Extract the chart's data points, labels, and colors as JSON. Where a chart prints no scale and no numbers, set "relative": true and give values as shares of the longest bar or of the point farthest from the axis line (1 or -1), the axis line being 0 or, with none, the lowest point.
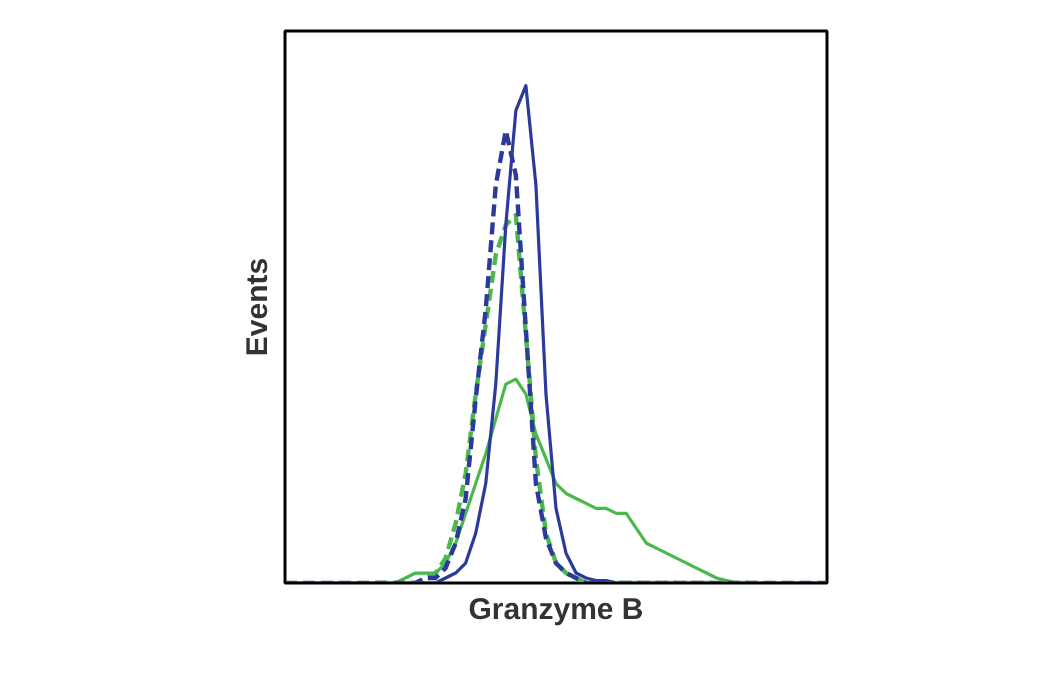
{
  "chart_data": {
    "type": "line",
    "xlabel": "Granzyme B",
    "ylabel": "Events",
    "relative": true,
    "tick_labels": false,
    "categories": [
      null,
      null,
      null,
      null,
      null,
      null,
      null,
      null,
      null,
      null,
      null,
      null,
      null,
      null,
      null,
      null,
      null,
      null,
      null,
      null,
      null,
      null,
      null,
      null,
      null,
      null,
      null,
      null,
      null,
      null,
      null,
      null,
      null,
      null,
      null,
      null,
      null,
      null,
      null,
      null,
      null,
      null,
      null,
      null,
      null,
      null,
      null,
      null,
      null,
      null,
      null,
      null,
      null,
      null,
      null
    ],
    "series": [
      {
        "color": "#4bb84b",
        "line_style": "solid",
        "values": [
          null,
          null,
          null,
          null,
          null,
          null,
          null,
          null,
          null,
          null,
          0,
          0,
          0.01,
          0.02,
          0.02,
          0.02,
          0.04,
          0.08,
          0.14,
          0.2,
          0.26,
          0.33,
          0.4,
          0.41,
          0.38,
          0.3,
          0.25,
          0.2,
          0.18,
          0.17,
          0.16,
          0.15,
          0.15,
          0.14,
          0.14,
          0.11,
          0.08,
          0.07,
          0.06,
          0.05,
          0.04,
          0.03,
          0.02,
          0.01,
          0.005,
          0,
          0,
          null,
          null,
          null,
          null,
          null,
          null,
          null,
          null
        ]
      },
      {
        "color": "#4bb84b",
        "line_style": "dashed",
        "values": [
          null,
          null,
          null,
          null,
          null,
          null,
          null,
          null,
          null,
          0,
          0,
          0,
          0,
          0,
          0.01,
          0.02,
          0.05,
          0.12,
          0.22,
          0.38,
          0.52,
          0.66,
          0.72,
          0.74,
          0.5,
          0.25,
          0.1,
          0.04,
          0.02,
          0.01,
          0,
          0,
          0,
          0,
          0,
          0,
          0,
          0,
          0,
          0,
          0,
          0,
          0,
          0,
          0,
          0,
          0,
          0,
          null,
          null,
          null,
          null,
          null,
          null,
          null
        ]
      },
      {
        "color": "#2b3a9b",
        "line_style": "dashed",
        "values": [
          0,
          0,
          0,
          0,
          0,
          0,
          0,
          0,
          0,
          0,
          0,
          0,
          0,
          0,
          0.01,
          0.01,
          0.03,
          0.08,
          0.17,
          0.37,
          0.55,
          0.8,
          0.91,
          0.82,
          0.51,
          0.2,
          0.09,
          0.04,
          0.02,
          0.01,
          0,
          0,
          0,
          0,
          0,
          0,
          0,
          0,
          0,
          0,
          0,
          0,
          0,
          0,
          0,
          0,
          0,
          0,
          0,
          0,
          0,
          0,
          0,
          0,
          0
        ]
      },
      {
        "color": "#2b3a9b",
        "line_style": "solid",
        "values": [
          0,
          0,
          0,
          0,
          0,
          0,
          0,
          0,
          0,
          0,
          0,
          0,
          0,
          0,
          0,
          0,
          0.01,
          0.02,
          0.04,
          0.1,
          0.2,
          0.4,
          0.72,
          0.95,
          1.0,
          0.8,
          0.38,
          0.15,
          0.06,
          0.02,
          0.01,
          0.005,
          0.005,
          0,
          0,
          0,
          0,
          0,
          0,
          0,
          0,
          0,
          0,
          0,
          0,
          0,
          0,
          0,
          0,
          0,
          0,
          0,
          0,
          0,
          0
        ]
      }
    ]
  }
}
